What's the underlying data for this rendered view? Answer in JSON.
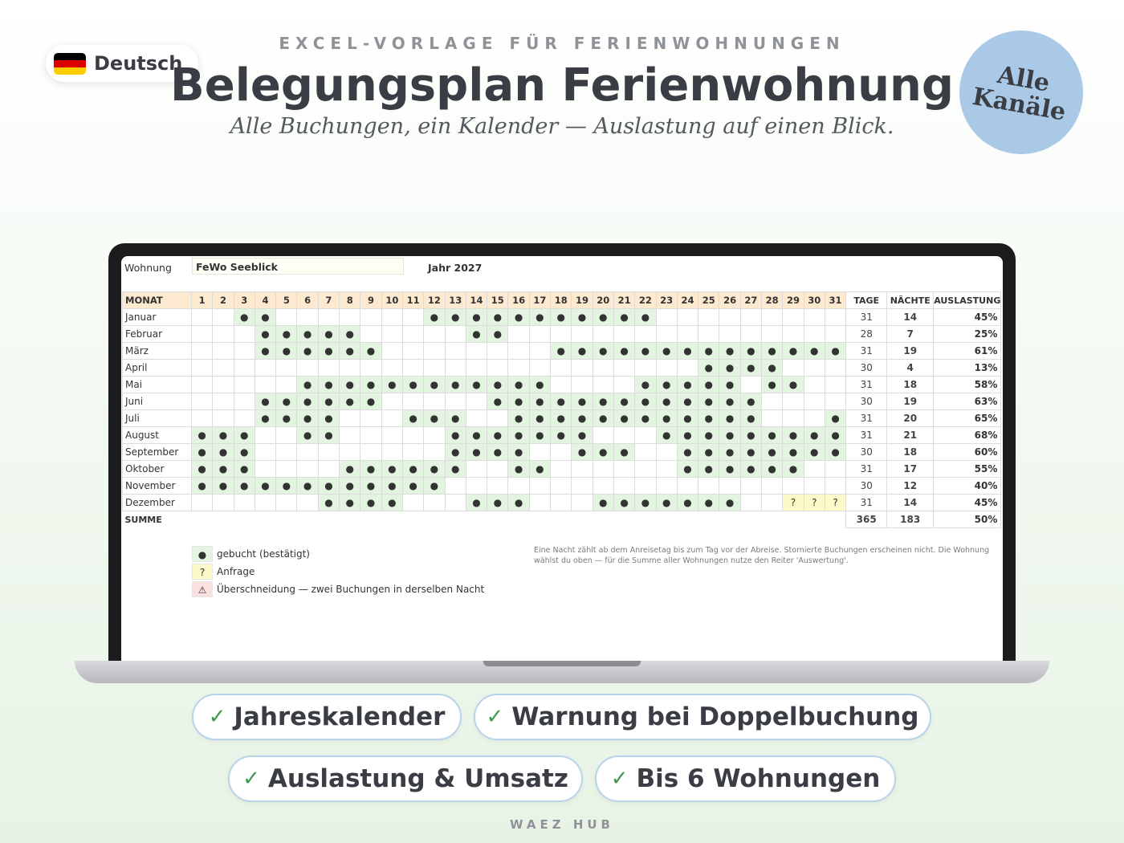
{
  "language": {
    "label": "Deutsch",
    "flag_colors": [
      "#000000",
      "#dd0000",
      "#ffce00"
    ]
  },
  "header": {
    "eyebrow": "EXCEL-VORLAGE FÜR FERIENWOHNUNGEN",
    "title": "Belegungsplan Ferienwohnung",
    "subtitle": "Alle Buchungen, ein Kalender — Auslastung auf einen Blick.",
    "badge": "Alle Kanäle",
    "badge_color": "#a9c9e6"
  },
  "sheet": {
    "apartment_label": "Wohnung",
    "apartment_value": "FeWo Seeblick",
    "year_label": "Jahr 2027",
    "columns": {
      "month": "MONAT",
      "days": "TAGE",
      "nights": "NÄCHTE",
      "occupancy": "AUSLASTUNG"
    },
    "rows": [
      {
        "month": "Januar",
        "days": "31",
        "nights": "14",
        "occupancy": "45%",
        "cells": "..bb.......bbbbbbbbbbb........."
      },
      {
        "month": "Februar",
        "days": "28",
        "nights": "7",
        "occupancy": "25%",
        "cells": "...bbbbb.....bb..............."
      },
      {
        "month": "März",
        "days": "31",
        "nights": "19",
        "occupancy": "61%",
        "cells": "...bbbbbb........bbbbbbbbbbbbbb"
      },
      {
        "month": "April",
        "days": "30",
        "nights": "4",
        "occupancy": "13%",
        "cells": "........................bbbb.."
      },
      {
        "month": "Mai",
        "days": "31",
        "nights": "18",
        "occupancy": "58%",
        "cells": ".....bbbbbbbbbbbb....bbbbb.bb..."
      },
      {
        "month": "Juni",
        "days": "30",
        "nights": "19",
        "occupancy": "63%",
        "cells": "...bbbbbb.....bbbbbbbbbbbbb...."
      },
      {
        "month": "Juli",
        "days": "31",
        "nights": "20",
        "occupancy": "65%",
        "cells": "...bbbb...bbb..bbbbbbbbbbbb...bb"
      },
      {
        "month": "August",
        "days": "31",
        "nights": "21",
        "occupancy": "68%",
        "cells": "bbb..bb.....bbbbbbb...bbbbbbbbbb"
      },
      {
        "month": "September",
        "days": "30",
        "nights": "18",
        "occupancy": "60%",
        "cells": "bbb.........bbbb..bbb..bbbbbbbb."
      },
      {
        "month": "Oktober",
        "days": "31",
        "nights": "17",
        "occupancy": "55%",
        "cells": "bbb....bbbbbb..bb......bbbbbb...b"
      },
      {
        "month": "November",
        "days": "30",
        "nights": "12",
        "occupancy": "40%",
        "cells": "bbbbbbbbbbbb.................."
      },
      {
        "month": "Dezember",
        "days": "31",
        "nights": "14",
        "occupancy": "45%",
        "cells": "......bbbb...bbb...bbbbbbb..qqqq"
      }
    ],
    "sum": {
      "label": "SUMME",
      "days": "365",
      "nights": "183",
      "occupancy": "50%"
    },
    "legend": [
      {
        "symbol": "●",
        "label": "gebucht (bestätigt)",
        "color": "#e3f5e0"
      },
      {
        "symbol": "?",
        "label": "Anfrage",
        "color": "#fdf9c9"
      },
      {
        "symbol": "⚠",
        "label": "Überschneidung — zwei Buchungen in derselben Nacht",
        "color": "#fbe1e1"
      }
    ],
    "note": "Eine Nacht zählt ab dem Anreisetag bis zum Tag vor der Abreise. Stornierte Buchungen erscheinen nicht. Die Wohnung wählst du oben — für die Summe aller Wohnungen nutze den Reiter 'Auswertung'.",
    "booked_color": "#e3f5e0",
    "request_color": "#fdf9c9",
    "header_color": "#fde9d0"
  },
  "features": [
    {
      "check": "✓",
      "label": "Jahreskalender"
    },
    {
      "check": "✓",
      "label": "Warnung bei Doppelbuchung"
    },
    {
      "check": "✓",
      "label": "Auslastung & Umsatz"
    },
    {
      "check": "✓",
      "label": "Bis 6 Wohnungen"
    }
  ],
  "footer": "WAEZ HUB"
}
